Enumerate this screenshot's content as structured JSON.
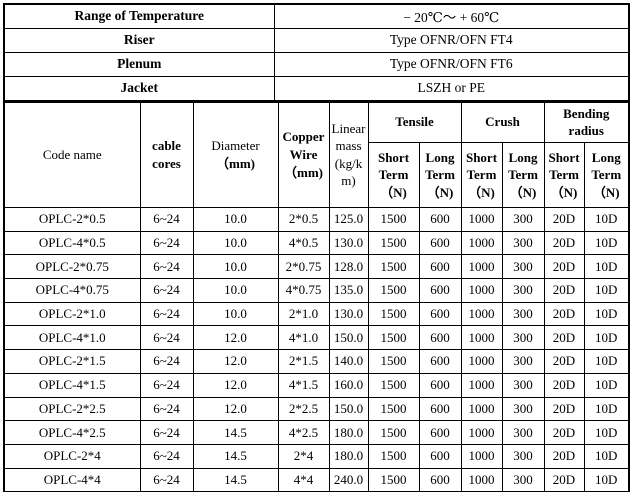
{
  "colors": {
    "border": "#000000",
    "background": "#ffffff",
    "text": "#000000"
  },
  "info_rows": [
    {
      "label": "Range of Temperature",
      "value": "− 20℃～ + 60℃"
    },
    {
      "label": "Riser",
      "value": "Type OFNR/OFN FT4"
    },
    {
      "label": "Plenum",
      "value": "Type OFNR/OFN FT6"
    },
    {
      "label": "Jacket",
      "value": "LSZH or PE"
    }
  ],
  "table": {
    "columns": {
      "code_name": "Code name",
      "cable_cores": "cable cores",
      "diameter_label": "Diameter",
      "diameter_unit": "（mm)",
      "copper_wire": "Copper Wire （mm)",
      "linear_mass": "Linear mass (kg/km)",
      "tensile": "Tensile",
      "crush": "Crush",
      "bending_radius": "Bending radius",
      "sub_short": "Short Term （N)",
      "sub_long": "Long Term （N)"
    },
    "rows": [
      [
        "OPLC-2*0.5",
        "6~24",
        "10.0",
        "2*0.5",
        "125.0",
        "1500",
        "600",
        "1000",
        "300",
        "20D",
        "10D"
      ],
      [
        "OPLC-4*0.5",
        "6~24",
        "10.0",
        "4*0.5",
        "130.0",
        "1500",
        "600",
        "1000",
        "300",
        "20D",
        "10D"
      ],
      [
        "OPLC-2*0.75",
        "6~24",
        "10.0",
        "2*0.75",
        "128.0",
        "1500",
        "600",
        "1000",
        "300",
        "20D",
        "10D"
      ],
      [
        "OPLC-4*0.75",
        "6~24",
        "10.0",
        "4*0.75",
        "135.0",
        "1500",
        "600",
        "1000",
        "300",
        "20D",
        "10D"
      ],
      [
        "OPLC-2*1.0",
        "6~24",
        "10.0",
        "2*1.0",
        "130.0",
        "1500",
        "600",
        "1000",
        "300",
        "20D",
        "10D"
      ],
      [
        "OPLC-4*1.0",
        "6~24",
        "12.0",
        "4*1.0",
        "150.0",
        "1500",
        "600",
        "1000",
        "300",
        "20D",
        "10D"
      ],
      [
        "OPLC-2*1.5",
        "6~24",
        "12.0",
        "2*1.5",
        "140.0",
        "1500",
        "600",
        "1000",
        "300",
        "20D",
        "10D"
      ],
      [
        "OPLC-4*1.5",
        "6~24",
        "12.0",
        "4*1.5",
        "160.0",
        "1500",
        "600",
        "1000",
        "300",
        "20D",
        "10D"
      ],
      [
        "OPLC-2*2.5",
        "6~24",
        "12.0",
        "2*2.5",
        "150.0",
        "1500",
        "600",
        "1000",
        "300",
        "20D",
        "10D"
      ],
      [
        "OPLC-4*2.5",
        "6~24",
        "14.5",
        "4*2.5",
        "180.0",
        "1500",
        "600",
        "1000",
        "300",
        "20D",
        "10D"
      ],
      [
        "OPLC-2*4",
        "6~24",
        "14.5",
        "2*4",
        "180.0",
        "1500",
        "600",
        "1000",
        "300",
        "20D",
        "10D"
      ],
      [
        "OPLC-4*4",
        "6~24",
        "14.5",
        "4*4",
        "240.0",
        "1500",
        "600",
        "1000",
        "300",
        "20D",
        "10D"
      ]
    ]
  }
}
